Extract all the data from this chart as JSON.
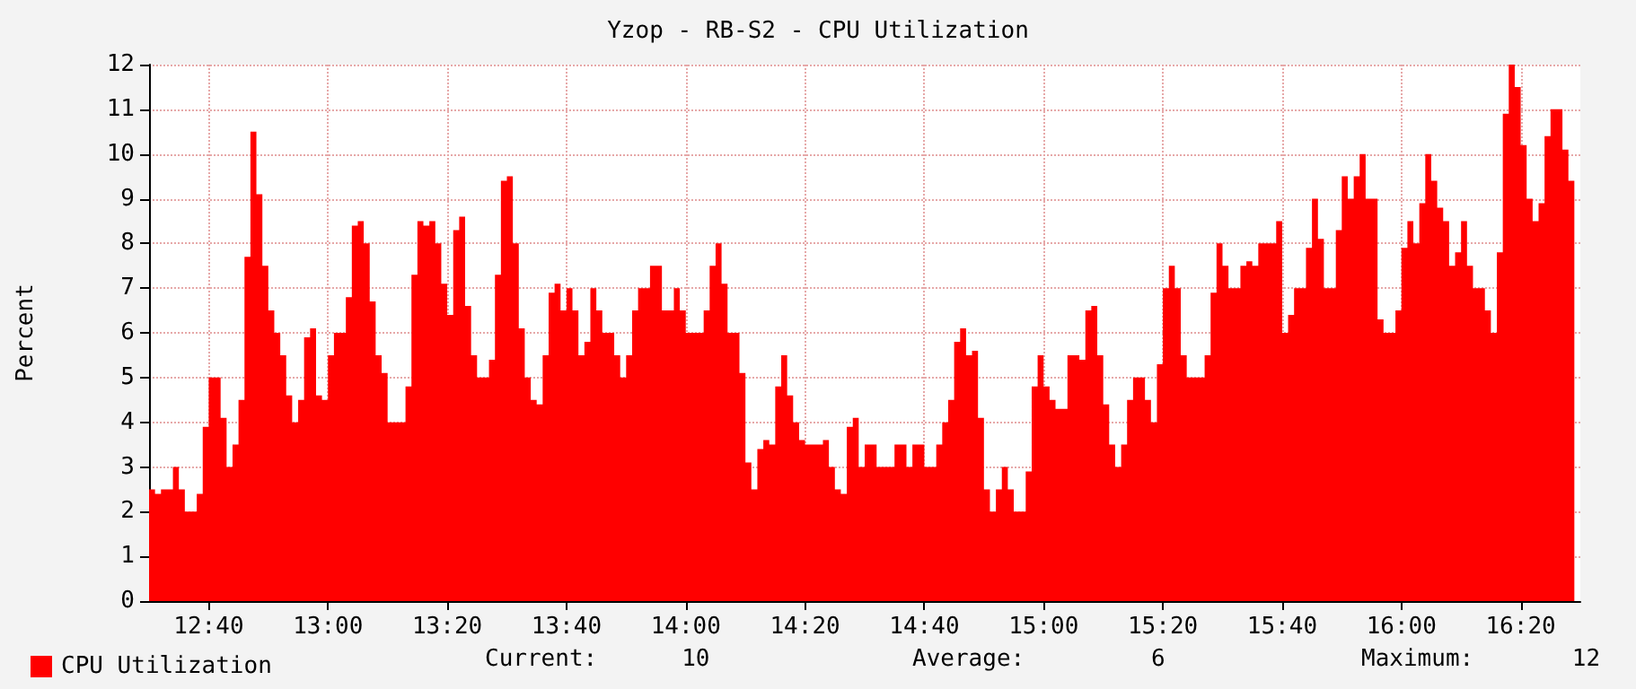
{
  "chart_data": {
    "type": "area",
    "title": "Yzop - RB-S2 - CPU Utilization",
    "ylabel": "Percent",
    "xlim": [
      12.5,
      16.5
    ],
    "xticks": [
      {
        "value": 12.6667,
        "label": "12:40"
      },
      {
        "value": 13,
        "label": "13:00"
      },
      {
        "value": 13.3333,
        "label": "13:20"
      },
      {
        "value": 13.6667,
        "label": "13:40"
      },
      {
        "value": 14,
        "label": "14:00"
      },
      {
        "value": 14.3333,
        "label": "14:20"
      },
      {
        "value": 14.6667,
        "label": "14:40"
      },
      {
        "value": 15,
        "label": "15:00"
      },
      {
        "value": 15.3333,
        "label": "15:20"
      },
      {
        "value": 15.6667,
        "label": "15:40"
      },
      {
        "value": 16,
        "label": "16:00"
      },
      {
        "value": 16.3333,
        "label": "16:20"
      }
    ],
    "ylim": [
      0,
      12
    ],
    "yticks": [
      0,
      1,
      2,
      3,
      4,
      5,
      6,
      7,
      8,
      9,
      10,
      11,
      12
    ],
    "grid": true,
    "legend": "bottom left",
    "marker": "none",
    "x": [
      12.5,
      12.5167,
      12.5333,
      12.55,
      12.5667,
      12.5833,
      12.6,
      12.6167,
      12.6333,
      12.65,
      12.6667,
      12.6833,
      12.7,
      12.7167,
      12.7333,
      12.75,
      12.7667,
      12.7833,
      12.8,
      12.8167,
      12.8333,
      12.85,
      12.8667,
      12.8833,
      12.9,
      12.9167,
      12.9333,
      12.95,
      12.9667,
      12.9833,
      13,
      13.0167,
      13.0333,
      13.05,
      13.0667,
      13.0833,
      13.1,
      13.1167,
      13.1333,
      13.15,
      13.1667,
      13.1833,
      13.2,
      13.2167,
      13.2333,
      13.25,
      13.2667,
      13.2833,
      13.3,
      13.3167,
      13.3333,
      13.35,
      13.3667,
      13.3833,
      13.4,
      13.4167,
      13.4333,
      13.45,
      13.4667,
      13.4833,
      13.5,
      13.5167,
      13.5333,
      13.55,
      13.5667,
      13.5833,
      13.6,
      13.6167,
      13.6333,
      13.65,
      13.6667,
      13.6833,
      13.7,
      13.7167,
      13.7333,
      13.75,
      13.7667,
      13.7833,
      13.8,
      13.8167,
      13.8333,
      13.85,
      13.8667,
      13.8833,
      13.9,
      13.9167,
      13.9333,
      13.95,
      13.9667,
      13.9833,
      14,
      14.0167,
      14.0333,
      14.05,
      14.0667,
      14.0833,
      14.1,
      14.1167,
      14.1333,
      14.15,
      14.1667,
      14.1833,
      14.2,
      14.2167,
      14.2333,
      14.25,
      14.2667,
      14.2833,
      14.3,
      14.3167,
      14.3333,
      14.35,
      14.3667,
      14.3833,
      14.4,
      14.4167,
      14.4333,
      14.45,
      14.4667,
      14.4833,
      14.5,
      14.5167,
      14.5333,
      14.55,
      14.5667,
      14.5833,
      14.6,
      14.6167,
      14.6333,
      14.65,
      14.6667,
      14.6833,
      14.7,
      14.7167,
      14.7333,
      14.75,
      14.7667,
      14.7833,
      14.8,
      14.8167,
      14.8333,
      14.85,
      14.8667,
      14.8833,
      14.9,
      14.9167,
      14.9333,
      14.95,
      14.9667,
      14.9833,
      15,
      15.0167,
      15.0333,
      15.05,
      15.0667,
      15.0833,
      15.1,
      15.1167,
      15.1333,
      15.15,
      15.1667,
      15.1833,
      15.2,
      15.2167,
      15.2333,
      15.25,
      15.2667,
      15.2833,
      15.3,
      15.3167,
      15.3333,
      15.35,
      15.3667,
      15.3833,
      15.4,
      15.4167,
      15.4333,
      15.45,
      15.4667,
      15.4833,
      15.5,
      15.5167,
      15.5333,
      15.55,
      15.5667,
      15.5833,
      15.6,
      15.6167,
      15.6333,
      15.65,
      15.6667,
      15.6833,
      15.7,
      15.7167,
      15.7333,
      15.75,
      15.7667,
      15.7833,
      15.8,
      15.8167,
      15.8333,
      15.85,
      15.8667,
      15.8833,
      15.9,
      15.9167,
      15.9333,
      15.95,
      15.9667,
      15.9833,
      16,
      16.0167,
      16.0333,
      16.05,
      16.0667,
      16.0833,
      16.1,
      16.1167,
      16.1333,
      16.15,
      16.1667,
      16.1833,
      16.2,
      16.2167,
      16.2333,
      16.25,
      16.2667,
      16.2833,
      16.3,
      16.3167,
      16.3333,
      16.35,
      16.3667,
      16.3833,
      16.4,
      16.4167,
      16.4333,
      16.45,
      16.4667,
      16.4833
    ],
    "series": [
      {
        "name": "CPU Utilization",
        "color": "#ff0000",
        "values": [
          2.5,
          2.4,
          2.5,
          2.5,
          3,
          2.5,
          2,
          2,
          2.4,
          3.9,
          5,
          5,
          4.1,
          3,
          3.5,
          4.5,
          7.7,
          10.5,
          9.1,
          7.5,
          6.5,
          6,
          5.5,
          4.6,
          4,
          4.5,
          5.9,
          6.1,
          4.6,
          4.5,
          5.5,
          6,
          6,
          6.8,
          8.4,
          8.5,
          8,
          6.7,
          5.5,
          5.1,
          4,
          4,
          4,
          4.8,
          7.3,
          8.5,
          8.4,
          8.5,
          8,
          7.1,
          6.4,
          8.3,
          8.6,
          6.6,
          5.5,
          5,
          5,
          5.4,
          7.3,
          9.4,
          9.5,
          8,
          6.1,
          5,
          4.5,
          4.4,
          5.5,
          6.9,
          7.1,
          6.5,
          7,
          6.5,
          5.5,
          5.8,
          7,
          6.5,
          6,
          6,
          5.5,
          5,
          5.5,
          6.5,
          7,
          7,
          7.5,
          7.5,
          6.5,
          6.5,
          7,
          6.5,
          6,
          6,
          6,
          6.5,
          7.5,
          8,
          7.1,
          6,
          6,
          5.1,
          3.1,
          2.5,
          3.4,
          3.6,
          3.5,
          4.8,
          5.5,
          4.6,
          4,
          3.6,
          3.5,
          3.5,
          3.5,
          3.6,
          3,
          2.5,
          2.4,
          3.9,
          4.1,
          3,
          3.5,
          3.5,
          3,
          3,
          3,
          3.5,
          3.5,
          3,
          3.5,
          3.5,
          3,
          3,
          3.5,
          4,
          4.5,
          5.8,
          6.1,
          5.5,
          5.6,
          4.1,
          2.5,
          2,
          2.5,
          3,
          2.5,
          2,
          2,
          2.9,
          4.8,
          5.5,
          4.8,
          4.5,
          4.3,
          4.3,
          5.5,
          5.5,
          5.4,
          6.5,
          6.6,
          5.5,
          4.4,
          3.5,
          3,
          3.5,
          4.5,
          5,
          5,
          4.5,
          4,
          5.3,
          7,
          7.5,
          7,
          5.5,
          5,
          5,
          5,
          5.5,
          6.9,
          8,
          7.5,
          7,
          7,
          7.5,
          7.6,
          7.5,
          8,
          8,
          8,
          8.5,
          6,
          6.4,
          7,
          7,
          7.9,
          9,
          8.1,
          7,
          7,
          8.3,
          9.5,
          9,
          9.5,
          10,
          9,
          9,
          6.3,
          6,
          6,
          6.5,
          7.9,
          8.5,
          8,
          8.9,
          10,
          9.4,
          8.8,
          8.5,
          7.5,
          7.8,
          8.5,
          7.5,
          7,
          7,
          6.5,
          6,
          7.8,
          10.9,
          12,
          11.5,
          10.2,
          9,
          8.5,
          8.9,
          10.4,
          11,
          11,
          10.1,
          9.4,
          9.5
        ]
      }
    ],
    "annotations": [
      "Current:      10",
      "Average:         6",
      "Maximum:       12"
    ]
  }
}
